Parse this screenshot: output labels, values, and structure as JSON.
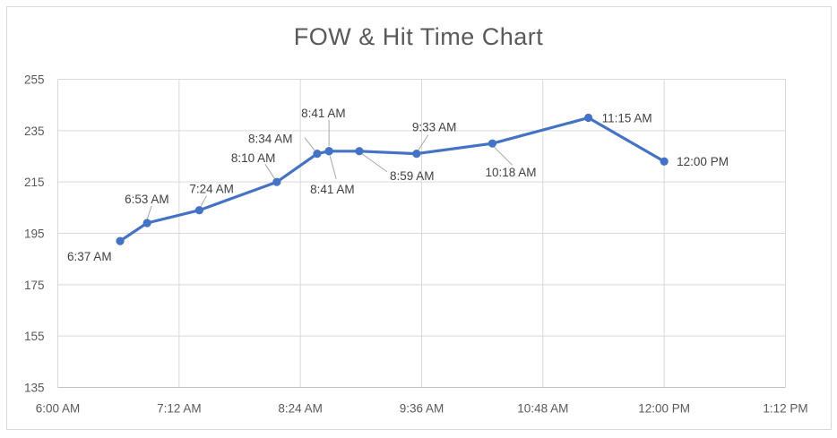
{
  "title": "FOW & Hit Time Chart",
  "colors": {
    "background": "#FFFFFF",
    "frame_border": "#D9D9D9",
    "gridline": "#D9D9D9",
    "axis_line": "#BFBFBF",
    "series_line": "#4472C4",
    "marker": "#4472C4",
    "tick_label": "#595959",
    "data_label": "#404040",
    "title_color": "#595959",
    "leader_line": "#A6A6A6"
  },
  "chart_data": {
    "type": "line",
    "title": "FOW & Hit Time Chart",
    "xlabel": "",
    "ylabel": "",
    "legend": "none",
    "grid": true,
    "x_axis": {
      "kind": "time",
      "range": [
        "6:00 AM",
        "1:12 PM"
      ],
      "ticks": [
        "6:00 AM",
        "7:12 AM",
        "8:24 AM",
        "9:36 AM",
        "10:48 AM",
        "12:00 PM",
        "1:12 PM"
      ]
    },
    "y_axis": {
      "range": [
        135,
        255
      ],
      "ticks": [
        135,
        155,
        175,
        195,
        215,
        235,
        255
      ]
    },
    "series": [
      {
        "name": "FOW & Hit Time",
        "data_labels": "time",
        "points": [
          {
            "time": "6:37 AM",
            "value": 192,
            "label": {
              "dx": -59,
              "dy": 22,
              "anchor": "start"
            },
            "leader": null
          },
          {
            "time": "6:53 AM",
            "value": 199,
            "label": {
              "dx": -25,
              "dy": -22,
              "anchor": "start"
            },
            "leader": [
              5,
              -19,
              0,
              -4
            ]
          },
          {
            "time": "7:24 AM",
            "value": 204,
            "label": {
              "dx": -11,
              "dy": -19,
              "anchor": "start"
            },
            "leader": [
              8,
              -16,
              1,
              -3
            ]
          },
          {
            "time": "8:10 AM",
            "value": 215,
            "label": {
              "dx": -51,
              "dy": -22,
              "anchor": "start"
            },
            "leader": [
              -13,
              -20,
              -2,
              -3
            ]
          },
          {
            "time": "8:34 AM",
            "value": 226,
            "label": {
              "dx": -77,
              "dy": -12,
              "anchor": "start"
            },
            "leader": [
              -14,
              -18,
              -3,
              -4
            ]
          },
          {
            "time": "8:41 AM",
            "value": 227,
            "label": {
              "dx": -31,
              "dy": -38,
              "anchor": "start"
            },
            "leader": [
              0,
              -35,
              0,
              -6
            ]
          },
          {
            "time": "8:41 AM",
            "value": 227,
            "label": {
              "dx": -21,
              "dy": 47,
              "anchor": "start"
            },
            "leader": [
              8,
              31,
              1,
              5
            ]
          },
          {
            "time": "8:59 AM",
            "value": 227,
            "label": {
              "dx": 34,
              "dy": 32,
              "anchor": "start"
            },
            "leader": [
              31,
              23,
              3,
              3
            ]
          },
          {
            "time": "9:33 AM",
            "value": 226,
            "label": {
              "dx": -5,
              "dy": -25,
              "anchor": "start"
            },
            "leader": [
              13,
              -21,
              2,
              -4
            ]
          },
          {
            "time": "10:18 AM",
            "value": 230,
            "label": {
              "dx": -8,
              "dy": 37,
              "anchor": "start"
            },
            "leader": [
              22,
              24,
              1,
              3
            ]
          },
          {
            "time": "11:15 AM",
            "value": 240,
            "label": {
              "dx": 15,
              "dy": 5,
              "anchor": "start"
            },
            "leader": null
          },
          {
            "time": "12:00 PM",
            "value": 223,
            "label": {
              "dx": 14,
              "dy": 5,
              "anchor": "start"
            },
            "leader": null
          }
        ]
      }
    ]
  }
}
